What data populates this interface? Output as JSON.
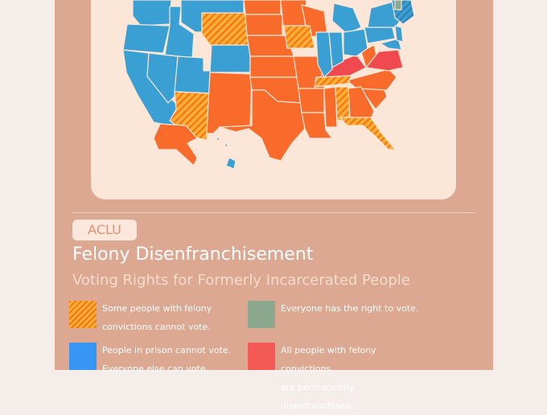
{
  "badge": "ACLU",
  "title": "Felony Disenfranchisement",
  "subtitle": "Voting Rights for Formerly Incarcerated People",
  "colors": {
    "restricted": "#f86b2b",
    "partial": "#f9a51d",
    "prison_only": "#3aa0d4",
    "everyone": "#8ca88c",
    "permanent": "#f04a50"
  },
  "legend": [
    {
      "key": "partial",
      "lines": [
        "Some people with felony",
        "convictions cannot vote."
      ]
    },
    {
      "key": "everyone",
      "lines": [
        "Everyone has the right to vote.",
        ""
      ]
    },
    {
      "key": "prison_only",
      "lines": [
        "People in prison cannot vote.",
        "Everyone else can vote."
      ]
    },
    {
      "key": "permanent",
      "lines": [
        "All people with felony convictions",
        "are permanently disenfranchised."
      ]
    }
  ]
}
